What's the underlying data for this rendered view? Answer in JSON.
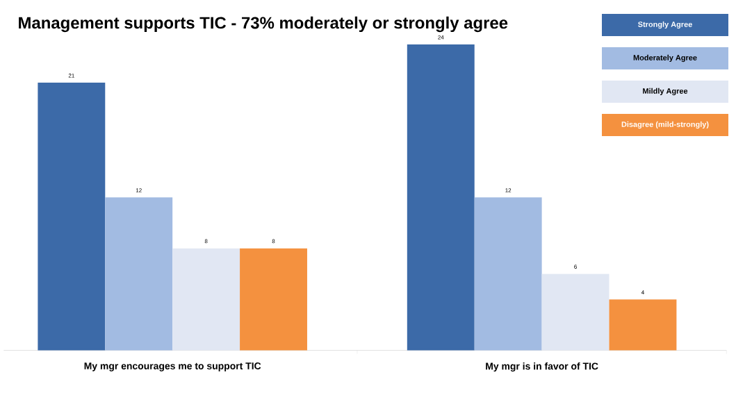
{
  "chart_data": {
    "type": "bar",
    "title": "Management supports TIC  - 73% moderately or strongly agree",
    "categories": [
      "My mgr encourages me to support TIC",
      "My mgr is in favor of TIC"
    ],
    "series": [
      {
        "name": "Strongly Agree",
        "color": "#3c6aa8",
        "values": [
          21,
          24
        ]
      },
      {
        "name": "Moderately Agree",
        "color": "#a2bbe2",
        "values": [
          12,
          12
        ]
      },
      {
        "name": "Mildly Agree",
        "color": "#e1e7f3",
        "values": [
          8,
          6
        ]
      },
      {
        "name": "Disagree (mild-strongly)",
        "color": "#f4913f",
        "values": [
          8,
          4
        ]
      }
    ],
    "data_labels": true,
    "legend": "top right"
  }
}
